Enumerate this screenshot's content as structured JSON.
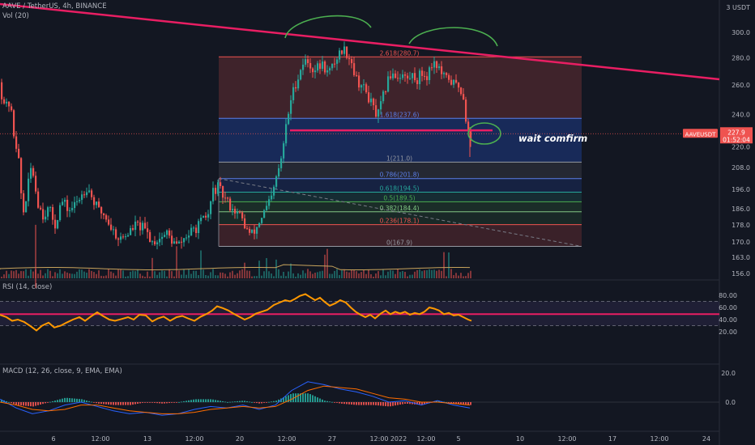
{
  "header": {
    "symbol_line": "AAVE / TetherUS, 4h, BINANCE",
    "volume_label": "Vol (20)",
    "rsi_label": "RSI (14, close)",
    "macd_label": "MACD (12, 26, close, 9, EMA, EMA)"
  },
  "currency": "3 USDT",
  "ticker_badge": "AAVEUSDT",
  "last_price": "227.9",
  "countdown": "01:52:04",
  "annotation_text": "wait comfirm",
  "colors": {
    "background": "#131722",
    "up": "#26a69a",
    "down": "#ef5350",
    "trendline": "#e91e63",
    "annotation": "#4caf50",
    "rsi_line": "#ff9800",
    "macd_line": "#2962ff",
    "signal_line": "#ff6d00"
  },
  "price_axis_ticks": [
    "300.0",
    "280.0",
    "260.0",
    "240.0",
    "220.0",
    "208.0",
    "196.0",
    "186.0",
    "178.0",
    "170.0",
    "163.0",
    "156.0"
  ],
  "rsi_axis_ticks": [
    "80.00",
    "60.00",
    "40.00",
    "20.00"
  ],
  "macd_axis_ticks": [
    "20.0",
    "0.0"
  ],
  "time_axis_labels": [
    "6",
    "12:00",
    "13",
    "12:00",
    "20",
    "12:00",
    "27",
    "12:00",
    "2022",
    "12:00",
    "5",
    "10",
    "12:00",
    "17",
    "12:00",
    "24"
  ],
  "fib_upper": [
    {
      "label": "2.618(280.7)",
      "price": 280.7
    },
    {
      "label": "1.618(237.6)",
      "price": 237.6
    },
    {
      "label": "1(211.0)",
      "price": 211.0
    }
  ],
  "fib_lower": [
    {
      "label": "0.786(201.8)",
      "price": 201.8
    },
    {
      "label": "0.618(194.5)",
      "price": 194.5
    },
    {
      "label": "0.5(189.5)",
      "price": 189.5
    },
    {
      "label": "0.382(184.4)",
      "price": 184.4
    },
    {
      "label": "0.236(178.1)",
      "price": 178.1
    },
    {
      "label": "0(167.9)",
      "price": 167.9
    }
  ],
  "chart_data": {
    "type": "candlestick",
    "title": "AAVE / TetherUS, 4h, BINANCE",
    "xlabel": "",
    "ylabel": "",
    "price_scale": "log",
    "ylim": [
      153,
      320
    ],
    "last_price": 227.9,
    "support_level": 230,
    "price_path": [
      [
        0,
        262
      ],
      [
        5,
        252
      ],
      [
        10,
        245
      ],
      [
        14,
        248
      ],
      [
        19,
        228
      ],
      [
        24,
        217
      ],
      [
        30,
        182
      ],
      [
        36,
        196
      ],
      [
        41,
        210
      ],
      [
        48,
        190
      ],
      [
        55,
        183
      ],
      [
        62,
        186
      ],
      [
        70,
        178
      ],
      [
        78,
        190
      ],
      [
        87,
        185
      ],
      [
        95,
        188
      ],
      [
        102,
        193
      ],
      [
        110,
        198
      ],
      [
        117,
        190
      ],
      [
        124,
        185
      ],
      [
        131,
        183
      ],
      [
        140,
        176
      ],
      [
        150,
        171
      ],
      [
        160,
        174
      ],
      [
        170,
        178
      ],
      [
        180,
        176
      ],
      [
        190,
        170
      ],
      [
        200,
        172
      ],
      [
        208,
        174
      ],
      [
        215,
        170
      ],
      [
        222,
        168
      ],
      [
        230,
        172
      ],
      [
        240,
        175
      ],
      [
        250,
        179
      ],
      [
        259,
        183
      ],
      [
        265,
        195
      ],
      [
        271,
        197
      ],
      [
        278,
        192
      ],
      [
        285,
        188
      ],
      [
        292,
        185
      ],
      [
        299,
        182
      ],
      [
        306,
        176
      ],
      [
        312,
        173
      ],
      [
        318,
        176
      ],
      [
        325,
        182
      ],
      [
        332,
        187
      ],
      [
        338,
        192
      ],
      [
        343,
        202
      ],
      [
        349,
        212
      ],
      [
        355,
        232
      ],
      [
        361,
        250
      ],
      [
        366,
        260
      ],
      [
        371,
        268
      ],
      [
        377,
        278
      ],
      [
        383,
        276
      ],
      [
        389,
        271
      ],
      [
        395,
        273
      ],
      [
        401,
        275
      ],
      [
        407,
        268
      ],
      [
        413,
        274
      ],
      [
        419,
        282
      ],
      [
        425,
        287
      ],
      [
        430,
        284
      ],
      [
        434,
        280
      ],
      [
        437,
        275
      ],
      [
        442,
        264
      ],
      [
        448,
        260
      ],
      [
        455,
        254
      ],
      [
        462,
        245
      ],
      [
        468,
        238
      ],
      [
        474,
        250
      ],
      [
        480,
        262
      ],
      [
        486,
        270
      ],
      [
        492,
        266
      ],
      [
        498,
        268
      ],
      [
        505,
        264
      ],
      [
        511,
        267
      ],
      [
        517,
        264
      ],
      [
        522,
        269
      ],
      [
        528,
        266
      ],
      [
        532,
        271
      ],
      [
        537,
        278
      ],
      [
        542,
        274
      ],
      [
        547,
        268
      ],
      [
        551,
        264
      ],
      [
        556,
        265
      ],
      [
        561,
        261
      ],
      [
        566,
        260
      ],
      [
        570,
        258
      ],
      [
        574,
        252
      ],
      [
        578,
        234
      ],
      [
        581,
        226
      ]
    ],
    "rsi_path": [
      [
        0,
        48
      ],
      [
        8,
        44
      ],
      [
        15,
        38
      ],
      [
        22,
        40
      ],
      [
        30,
        36
      ],
      [
        38,
        29
      ],
      [
        45,
        22
      ],
      [
        52,
        30
      ],
      [
        60,
        35
      ],
      [
        67,
        27
      ],
      [
        75,
        30
      ],
      [
        82,
        35
      ],
      [
        90,
        40
      ],
      [
        98,
        44
      ],
      [
        105,
        38
      ],
      [
        112,
        45
      ],
      [
        120,
        52
      ],
      [
        127,
        46
      ],
      [
        135,
        40
      ],
      [
        142,
        38
      ],
      [
        150,
        41
      ],
      [
        158,
        44
      ],
      [
        165,
        40
      ],
      [
        172,
        48
      ],
      [
        180,
        47
      ],
      [
        188,
        37
      ],
      [
        195,
        42
      ],
      [
        202,
        45
      ],
      [
        210,
        38
      ],
      [
        218,
        44
      ],
      [
        225,
        46
      ],
      [
        232,
        42
      ],
      [
        240,
        38
      ],
      [
        248,
        45
      ],
      [
        256,
        50
      ],
      [
        262,
        55
      ],
      [
        268,
        62
      ],
      [
        275,
        59
      ],
      [
        282,
        55
      ],
      [
        288,
        50
      ],
      [
        295,
        45
      ],
      [
        302,
        40
      ],
      [
        309,
        44
      ],
      [
        316,
        50
      ],
      [
        323,
        53
      ],
      [
        330,
        56
      ],
      [
        338,
        64
      ],
      [
        345,
        68
      ],
      [
        352,
        72
      ],
      [
        358,
        70
      ],
      [
        364,
        74
      ],
      [
        370,
        79
      ],
      [
        377,
        82
      ],
      [
        383,
        77
      ],
      [
        389,
        72
      ],
      [
        395,
        76
      ],
      [
        401,
        69
      ],
      [
        407,
        63
      ],
      [
        414,
        67
      ],
      [
        420,
        72
      ],
      [
        427,
        68
      ],
      [
        433,
        60
      ],
      [
        439,
        53
      ],
      [
        445,
        48
      ],
      [
        451,
        44
      ],
      [
        457,
        48
      ],
      [
        463,
        42
      ],
      [
        470,
        50
      ],
      [
        476,
        55
      ],
      [
        482,
        49
      ],
      [
        488,
        53
      ],
      [
        494,
        50
      ],
      [
        500,
        53
      ],
      [
        506,
        48
      ],
      [
        512,
        51
      ],
      [
        518,
        49
      ],
      [
        524,
        53
      ],
      [
        530,
        60
      ],
      [
        536,
        58
      ],
      [
        542,
        55
      ],
      [
        548,
        49
      ],
      [
        554,
        51
      ],
      [
        560,
        47
      ],
      [
        566,
        48
      ],
      [
        572,
        44
      ],
      [
        578,
        40
      ],
      [
        582,
        38
      ]
    ],
    "macd_path": [
      [
        0,
        2
      ],
      [
        20,
        -4
      ],
      [
        40,
        -8
      ],
      [
        60,
        -6
      ],
      [
        80,
        -2
      ],
      [
        100,
        0
      ],
      [
        120,
        -3
      ],
      [
        140,
        -6
      ],
      [
        160,
        -8
      ],
      [
        180,
        -7
      ],
      [
        200,
        -9
      ],
      [
        220,
        -8
      ],
      [
        240,
        -5
      ],
      [
        260,
        -3
      ],
      [
        280,
        -4
      ],
      [
        300,
        -2
      ],
      [
        320,
        -5
      ],
      [
        340,
        -2
      ],
      [
        360,
        8
      ],
      [
        380,
        14
      ],
      [
        400,
        12
      ],
      [
        420,
        9
      ],
      [
        440,
        7
      ],
      [
        460,
        4
      ],
      [
        480,
        0
      ],
      [
        500,
        1
      ],
      [
        520,
        -2
      ],
      [
        540,
        1
      ],
      [
        560,
        -2
      ],
      [
        580,
        -4
      ]
    ],
    "signal_path": [
      [
        0,
        0
      ],
      [
        20,
        -2
      ],
      [
        40,
        -5
      ],
      [
        60,
        -6
      ],
      [
        80,
        -5
      ],
      [
        100,
        -2
      ],
      [
        120,
        -2
      ],
      [
        140,
        -4
      ],
      [
        160,
        -6
      ],
      [
        180,
        -7
      ],
      [
        200,
        -8
      ],
      [
        220,
        -8
      ],
      [
        240,
        -7
      ],
      [
        260,
        -5
      ],
      [
        280,
        -4
      ],
      [
        300,
        -3
      ],
      [
        320,
        -4
      ],
      [
        340,
        -3
      ],
      [
        360,
        2
      ],
      [
        380,
        8
      ],
      [
        400,
        11
      ],
      [
        420,
        10
      ],
      [
        440,
        9
      ],
      [
        460,
        6
      ],
      [
        480,
        3
      ],
      [
        500,
        2
      ],
      [
        520,
        0
      ],
      [
        540,
        0
      ],
      [
        560,
        -1
      ],
      [
        580,
        -2
      ]
    ],
    "volume_base": 5
  }
}
